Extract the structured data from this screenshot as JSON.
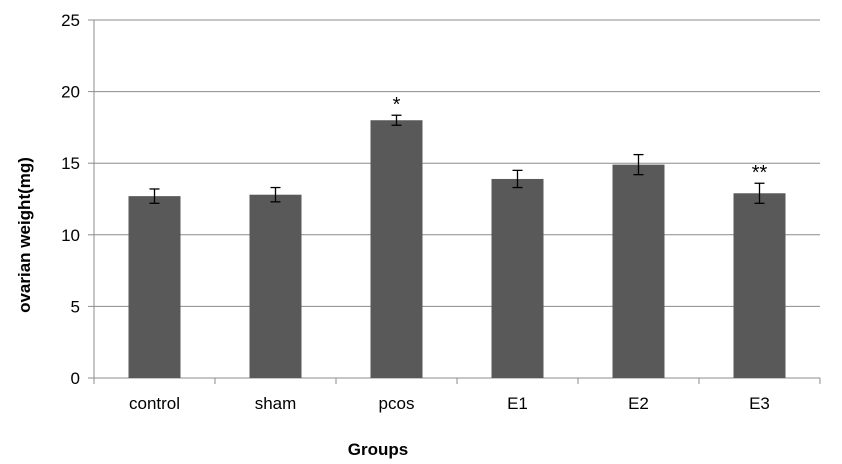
{
  "chart_data": {
    "type": "bar",
    "title": "",
    "xlabel": "Groups",
    "ylabel": "ovarian weight(mg)",
    "categories": [
      "control",
      "sham",
      "pcos",
      "E1",
      "E2",
      "E3"
    ],
    "values": [
      12.7,
      12.8,
      18.0,
      13.9,
      14.9,
      12.9
    ],
    "error": [
      0.5,
      0.5,
      0.35,
      0.6,
      0.7,
      0.7
    ],
    "annotations": [
      "",
      "",
      "*",
      "",
      "",
      "**"
    ],
    "ylim": [
      0,
      25
    ],
    "yticks": [
      0,
      5,
      10,
      15,
      20,
      25
    ],
    "grid": true,
    "legend": "none",
    "bar_color": "#595959",
    "grid_color": "#8c8c8c"
  }
}
